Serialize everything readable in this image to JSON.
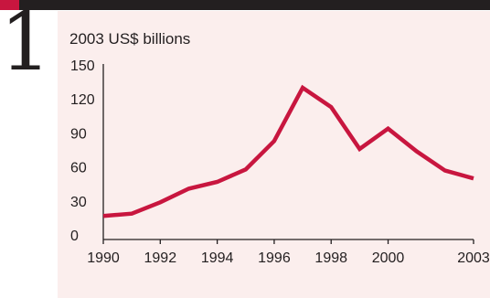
{
  "figure": {
    "number": "1"
  },
  "colors": {
    "line": "#c8163f",
    "axis": "#231f20",
    "panel": "#fbeeed",
    "bar": "#231f20",
    "accent": "#c8163f"
  },
  "chart_data": {
    "type": "line",
    "title": "2003 US$ billions",
    "xlabel": "",
    "ylabel": "",
    "xlim": [
      1990,
      2003
    ],
    "ylim": [
      0,
      150
    ],
    "yticks": [
      0,
      30,
      60,
      90,
      120,
      150
    ],
    "ytick_labels": [
      "0",
      "30",
      "60",
      "90",
      "120",
      "150"
    ],
    "xticks": [
      1990,
      1992,
      1994,
      1996,
      1998,
      2000,
      2003
    ],
    "xtick_labels": [
      "1990",
      "1992",
      "1994",
      "1996",
      "1998",
      "2000",
      "2003"
    ],
    "grid": false,
    "series": [
      {
        "x": [
          1990,
          1991,
          1992,
          1993,
          1994,
          1995,
          1996,
          1997,
          1998,
          1999,
          2000,
          2001,
          2002,
          2003
        ],
        "values": [
          16,
          18,
          28,
          40,
          46,
          57,
          82,
          129,
          112,
          75,
          93,
          73,
          56,
          49
        ]
      }
    ]
  }
}
